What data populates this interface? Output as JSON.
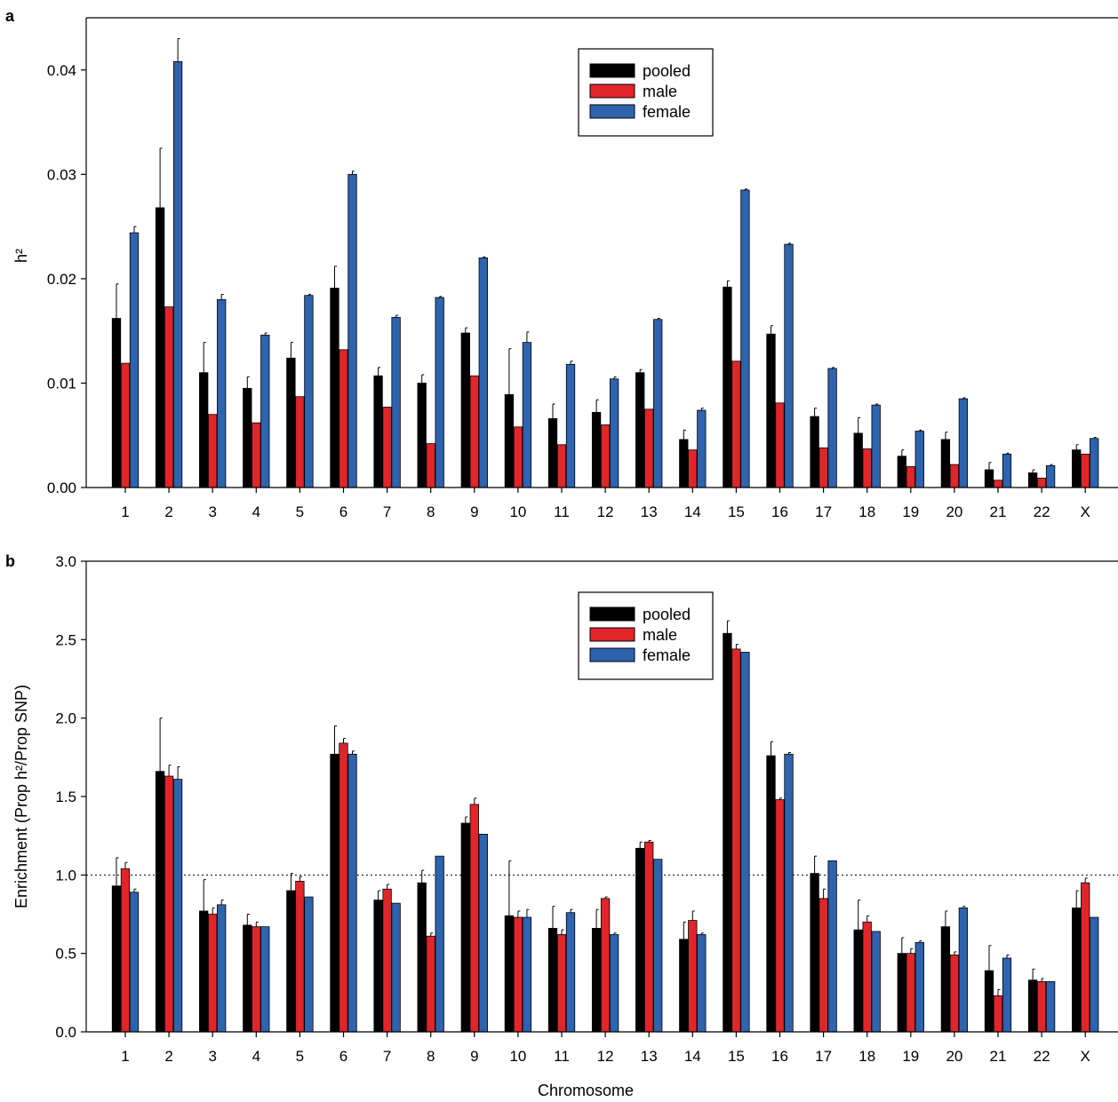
{
  "figure": {
    "xlabel": "Chromosome",
    "colors": {
      "pooled": "#000000",
      "male": "#e0262b",
      "female": "#2e63ae"
    }
  },
  "chart_data": [
    {
      "type": "bar",
      "panel": "a",
      "ylabel": "h²",
      "xlabel": "",
      "ylim": [
        0,
        0.045
      ],
      "yticks": [
        "0.00",
        "0.01",
        "0.02",
        "0.03",
        "0.04"
      ],
      "ytick_values": [
        0,
        0.01,
        0.02,
        0.03,
        0.04
      ],
      "legend_position": "top-center",
      "categories": [
        "1",
        "2",
        "3",
        "4",
        "5",
        "6",
        "7",
        "8",
        "9",
        "10",
        "11",
        "12",
        "13",
        "14",
        "15",
        "16",
        "17",
        "18",
        "19",
        "20",
        "21",
        "22",
        "X"
      ],
      "series": [
        {
          "name": "pooled",
          "color": "#000000",
          "values": [
            0.0162,
            0.0268,
            0.011,
            0.0095,
            0.0124,
            0.0191,
            0.0107,
            0.01,
            0.0148,
            0.0089,
            0.0066,
            0.0072,
            0.011,
            0.0046,
            0.0192,
            0.0147,
            0.0068,
            0.0052,
            0.003,
            0.0046,
            0.0017,
            0.0014,
            0.0036
          ],
          "errors": [
            0.0033,
            0.0057,
            0.0029,
            0.0011,
            0.0015,
            0.0021,
            0.0008,
            0.0008,
            0.0005,
            0.0044,
            0.0014,
            0.0012,
            0.0003,
            0.0009,
            0.0006,
            0.0008,
            0.0008,
            0.0015,
            0.0006,
            0.0007,
            0.0007,
            0.0003,
            0.0005
          ]
        },
        {
          "name": "male",
          "color": "#e0262b",
          "values": [
            0.0119,
            0.0173,
            0.007,
            0.0062,
            0.0087,
            0.0132,
            0.0077,
            0.0042,
            0.0107,
            0.0058,
            0.0041,
            0.006,
            0.0075,
            0.0036,
            0.0121,
            0.0081,
            0.0038,
            0.0037,
            0.002,
            0.0022,
            0.0007,
            0.0009,
            0.0032
          ]
        },
        {
          "name": "female",
          "color": "#2e63ae",
          "values": [
            0.0244,
            0.0408,
            0.018,
            0.0146,
            0.0184,
            0.03,
            0.0163,
            0.0182,
            0.022,
            0.0139,
            0.0118,
            0.0104,
            0.0161,
            0.0074,
            0.0285,
            0.0233,
            0.0114,
            0.0079,
            0.0054,
            0.0085,
            0.0032,
            0.0021,
            0.0047
          ],
          "errors": [
            0.0006,
            0.0022,
            0.0005,
            0.0002,
            0.0001,
            0.0003,
            0.0002,
            0.0001,
            0.0001,
            0.001,
            0.0003,
            0.0002,
            0.0001,
            0.0002,
            0.0001,
            0.0001,
            0.0001,
            0.0001,
            0.0001,
            0.0001,
            0.0001,
            0.0001,
            0.0001
          ]
        }
      ]
    },
    {
      "type": "bar",
      "panel": "b",
      "ylabel": "Enrichment (Prop h²/Prop SNP)",
      "xlabel": "Chromosome",
      "ylim": [
        0,
        3.0
      ],
      "yticks": [
        "0.0",
        "0.5",
        "1.0",
        "1.5",
        "2.0",
        "2.5",
        "3.0"
      ],
      "ytick_values": [
        0,
        0.5,
        1.0,
        1.5,
        2.0,
        2.5,
        3.0
      ],
      "reference_line": 1.0,
      "legend_position": "top-center",
      "categories": [
        "1",
        "2",
        "3",
        "4",
        "5",
        "6",
        "7",
        "8",
        "9",
        "10",
        "11",
        "12",
        "13",
        "14",
        "15",
        "16",
        "17",
        "18",
        "19",
        "20",
        "21",
        "22",
        "X"
      ],
      "series": [
        {
          "name": "pooled",
          "color": "#000000",
          "values": [
            0.93,
            1.66,
            0.77,
            0.68,
            0.9,
            1.77,
            0.84,
            0.95,
            1.33,
            0.74,
            0.66,
            0.66,
            1.17,
            0.59,
            2.54,
            1.76,
            1.01,
            0.65,
            0.5,
            0.67,
            0.39,
            0.33,
            0.79
          ],
          "errors": [
            0.18,
            0.34,
            0.2,
            0.07,
            0.11,
            0.18,
            0.06,
            0.08,
            0.04,
            0.35,
            0.14,
            0.12,
            0.04,
            0.11,
            0.08,
            0.09,
            0.11,
            0.19,
            0.1,
            0.1,
            0.16,
            0.07,
            0.11
          ]
        },
        {
          "name": "male",
          "color": "#e0262b",
          "values": [
            1.04,
            1.63,
            0.75,
            0.67,
            0.96,
            1.84,
            0.91,
            0.61,
            1.45,
            0.73,
            0.62,
            0.85,
            1.21,
            0.71,
            2.44,
            1.48,
            0.85,
            0.7,
            0.5,
            0.49,
            0.23,
            0.32,
            0.95
          ],
          "errors": [
            0.04,
            0.07,
            0.04,
            0.03,
            0.03,
            0.03,
            0.03,
            0.02,
            0.04,
            0.04,
            0.03,
            0.01,
            0.01,
            0.06,
            0.03,
            0.01,
            0.06,
            0.04,
            0.03,
            0.02,
            0.04,
            0.02,
            0.03
          ]
        },
        {
          "name": "female",
          "color": "#2e63ae",
          "values": [
            0.89,
            1.61,
            0.81,
            0.67,
            0.86,
            1.77,
            0.82,
            1.12,
            1.26,
            0.73,
            0.76,
            0.62,
            1.1,
            0.62,
            2.42,
            1.77,
            1.09,
            0.64,
            0.57,
            0.79,
            0.47,
            0.32,
            0.73
          ],
          "errors": [
            0.02,
            0.08,
            0.03,
            0.0,
            0.0,
            0.02,
            0.0,
            0.0,
            0.0,
            0.05,
            0.02,
            0.01,
            0.0,
            0.01,
            0.0,
            0.01,
            0.0,
            0.0,
            0.01,
            0.01,
            0.02,
            0.0,
            0.0
          ]
        }
      ]
    }
  ]
}
